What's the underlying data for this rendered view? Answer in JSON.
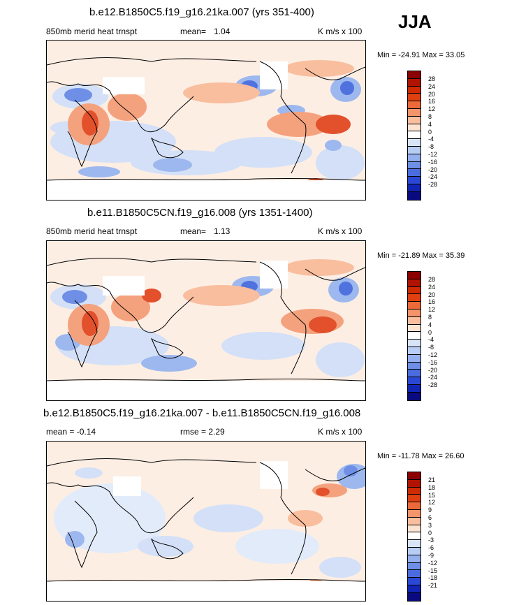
{
  "season": "JJA",
  "panels": [
    {
      "title": "b.e12.B1850C5.f19_g16.21ka.007 (yrs 351-400)",
      "left_label": "850mb merid heat trnspt",
      "mean_label": "mean=",
      "mean_value": "1.04",
      "units": "K m/s x 100",
      "minmax": "Min = -24.91 Max =  33.05",
      "ticks": [
        "28",
        "24",
        "20",
        "16",
        "12",
        "8",
        "4",
        "0",
        "-4",
        "-8",
        "-12",
        "-16",
        "-20",
        "-24",
        "-28"
      ]
    },
    {
      "title": "b.e11.B1850C5CN.f19_g16.008 (yrs 1351-1400)",
      "left_label": "850mb merid heat trnspt",
      "mean_label": "mean=",
      "mean_value": "1.13",
      "units": "K m/s x 100",
      "minmax": "Min = -21.89 Max =  35.39",
      "ticks": [
        "28",
        "24",
        "20",
        "16",
        "12",
        "8",
        "4",
        "0",
        "-4",
        "-8",
        "-12",
        "-16",
        "-20",
        "-24",
        "-28"
      ]
    },
    {
      "title": "b.e12.B1850C5.f19_g16.21ka.007 - b.e11.B1850C5CN.f19_g16.008",
      "mean_text": "mean =  -0.14",
      "rmse_text": "rmse =  2.29",
      "units": "K m/s x 100",
      "minmax": "Min = -11.78 Max =  26.60",
      "ticks": [
        "21",
        "18",
        "15",
        "12",
        "9",
        "6",
        "3",
        "0",
        "-3",
        "-6",
        "-9",
        "-12",
        "-15",
        "-18",
        "-21"
      ]
    }
  ],
  "colors": {
    "scale": [
      "#8b0000",
      "#b01400",
      "#d02a00",
      "#e04010",
      "#ec6a3a",
      "#f4946a",
      "#f9be9e",
      "#fde4d2",
      "#ffffff",
      "#d8e4f8",
      "#b8cdf4",
      "#94b0ee",
      "#6f8fe6",
      "#4a6cde",
      "#2a48d4",
      "#1224b4",
      "#0a0a80"
    ],
    "positive_light": "#fbd9c5",
    "positive_mid": "#f4a27e",
    "positive_strong": "#e2502c",
    "negative_light": "#d3e0f7",
    "negative_mid": "#9db8ee",
    "negative_strong": "#4f72df"
  }
}
